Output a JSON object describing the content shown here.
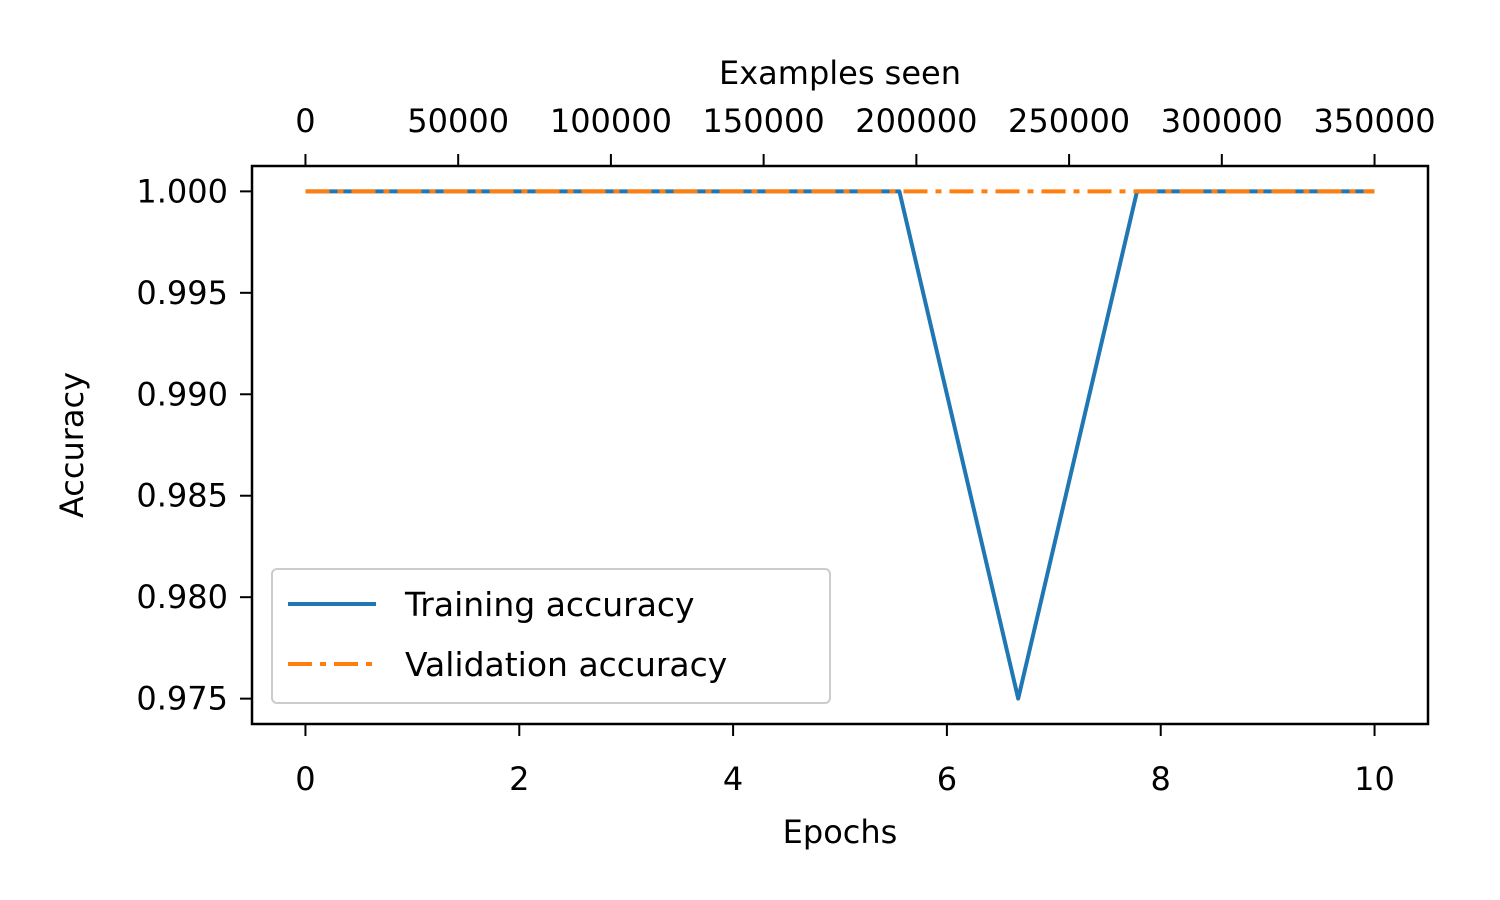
{
  "chart_data": {
    "type": "line",
    "xlabel": "Epochs",
    "ylabel": "Accuracy",
    "secondary_xlabel": "Examples seen",
    "x": [
      0,
      1.111,
      2.222,
      3.333,
      4.444,
      5.556,
      6.667,
      7.778,
      8.889,
      10.0
    ],
    "series": [
      {
        "name": "Training accuracy",
        "values": [
          1.0,
          1.0,
          1.0,
          1.0,
          1.0,
          1.0,
          0.975,
          1.0,
          1.0,
          1.0
        ],
        "color": "#1f77b4",
        "style": "solid"
      },
      {
        "name": "Validation accuracy",
        "values": [
          1.0,
          1.0,
          1.0,
          1.0,
          1.0,
          1.0,
          1.0,
          1.0,
          1.0,
          1.0
        ],
        "color": "#ff7f0e",
        "style": "dashdot"
      }
    ],
    "xlim": [
      -0.5,
      10.5
    ],
    "ylim": [
      0.97375,
      1.00125
    ],
    "xticks": [
      0,
      2,
      4,
      6,
      8,
      10
    ],
    "xtick_labels": [
      "0",
      "2",
      "4",
      "6",
      "8",
      "10"
    ],
    "yticks": [
      0.975,
      0.98,
      0.985,
      0.99,
      0.995,
      1.0
    ],
    "ytick_labels": [
      "0.975",
      "0.980",
      "0.985",
      "0.990",
      "0.995",
      "1.000"
    ],
    "top_axis": {
      "max_examples": 350000,
      "ticks": [
        0,
        50000,
        100000,
        150000,
        200000,
        250000,
        300000,
        350000
      ],
      "tick_labels": [
        "0",
        "50000",
        "100000",
        "150000",
        "200000",
        "250000",
        "300000",
        "350000"
      ]
    },
    "legend": "lower-left",
    "grid": false
  }
}
